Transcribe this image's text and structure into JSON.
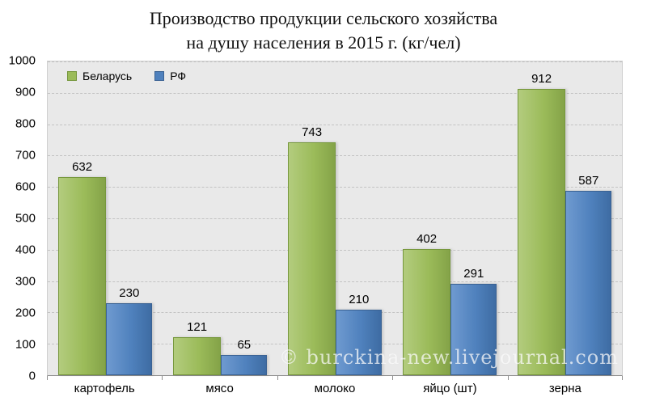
{
  "title": {
    "line1": "Производство продукции сельского хозяйства",
    "line2": "на душу населения в 2015 г. (кг/чел)"
  },
  "watermark": "© burckina-new.livejournal.com",
  "chart_data": {
    "type": "bar",
    "title": "Производство продукции сельского хозяйства на душу населения в 2015 г. (кг/чел)",
    "categories": [
      "картофель",
      "мясо",
      "молоко",
      "яйцо (шт)",
      "зерна"
    ],
    "series": [
      {
        "key": "belarus",
        "name": "Беларусь",
        "color": "#9bbb59",
        "color_light": "#b3cc7e",
        "color_dark": "#84a348",
        "border": "#76973c",
        "values": [
          632,
          121,
          743,
          402,
          912
        ]
      },
      {
        "key": "rf",
        "name": "РФ",
        "color": "#4f81bd",
        "color_light": "#6f9ad0",
        "color_dark": "#3e6ca3",
        "border": "#3a6293",
        "values": [
          230,
          65,
          210,
          291,
          587
        ]
      }
    ],
    "ylim": [
      0,
      1000
    ],
    "ytick_step": 100,
    "grid": "horizontal-dashed",
    "legend_position": "top-left",
    "plot_background": "#e9e9e9"
  }
}
